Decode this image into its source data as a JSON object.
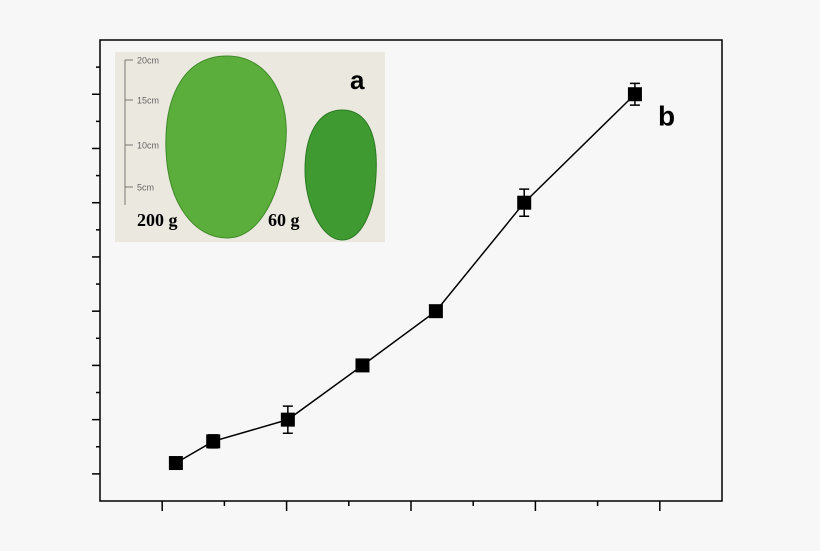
{
  "chart_data": {
    "type": "line",
    "x": [
      1.11,
      1.41,
      2.01,
      2.61,
      3.2,
      3.91,
      4.8
    ],
    "series": [
      {
        "color": "#000000",
        "values": [
          1.2,
          1.6,
          2.0,
          3.0,
          4.0,
          6.0,
          8.0
        ],
        "errors": [
          0.05,
          0.12,
          0.25,
          0.05,
          0.05,
          0.25,
          0.2
        ]
      }
    ],
    "xlim": [
      0.5,
      5.5
    ],
    "ylim": [
      0.5,
      9
    ],
    "xticks": [
      1,
      2,
      3,
      4,
      5
    ],
    "xticks_minor": [
      1.5,
      2.5,
      3.5,
      4.5
    ],
    "yticks": [
      1,
      2,
      3,
      4,
      5,
      6,
      7,
      8
    ],
    "yticks_minor": [
      1.5,
      2.5,
      3.5,
      4.5,
      5.5,
      6.5,
      7.5,
      8.5
    ],
    "annotations": [
      "a",
      "b"
    ],
    "inset": {
      "weights": [
        "200 g",
        "60 g"
      ],
      "ruler": [
        "20cm",
        "15cm",
        "10cm",
        "5cm"
      ]
    }
  }
}
